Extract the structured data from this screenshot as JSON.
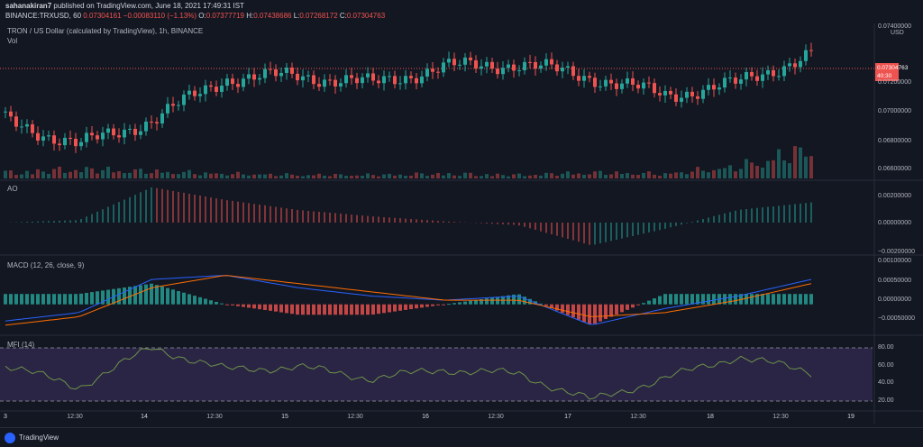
{
  "header": {
    "line1_author": "sahanakiran7",
    "line1_rest": "published on TradingView.com, June 18, 2021 17:49:31 IST",
    "line2_symbol": "BINANCE:TRXUSD, 60",
    "line2_last": "0.07304161",
    "line2_change": "−0.00083110 (−1.13%)",
    "line2_o": "O:",
    "line2_o_val": "0.07377719",
    "line2_h": "H:",
    "line2_h_val": "0.07438686",
    "line2_l": "L:",
    "line2_l_val": "0.07268172",
    "line2_c": "C:",
    "line2_c_val": "0.07304763"
  },
  "main": {
    "title": "TRON / US Dollar (calculated by TradingView), 1h, BINANCE",
    "vol_label": "Vol",
    "currency": "USD",
    "price_tag_value": "0.07304763",
    "price_tag_timer": "40:30",
    "y_ticks": [
      "0.07400000",
      "0.07200000",
      "0.07000000",
      "0.06800000",
      "0.06600000"
    ]
  },
  "ao": {
    "title": "AO",
    "y_ticks": [
      "0.00200000",
      "0.00000000",
      "−0.00200000"
    ]
  },
  "macd": {
    "title": "MACD (12, 26, close, 9)",
    "y_ticks": [
      "0.00100000",
      "0.00050000",
      "0.00000000",
      "−0.00050000"
    ]
  },
  "mfi": {
    "title": "MFI (14)",
    "y_ticks": [
      "80.00",
      "60.00",
      "40.00",
      "20.00"
    ]
  },
  "x_ticks": [
    "3",
    "12:30",
    "14",
    "12:30",
    "15",
    "12:30",
    "16",
    "12:30",
    "17",
    "12:30",
    "18",
    "12:30",
    "19"
  ],
  "footer": {
    "brand": "TradingView"
  },
  "colors": {
    "up": "#26a69a",
    "down": "#ef5350",
    "background": "#131722",
    "mfi_fill": "#7e57c2",
    "macd_line": "#2962ff",
    "signal_line": "#ff6d00"
  },
  "chart_data": [
    {
      "type": "line",
      "title": "TRON / US Dollar (calculated by TradingView), 1h, BINANCE",
      "subtype": "candlestick",
      "ylim": [
        0.0655,
        0.0745
      ],
      "x": [
        "3",
        "12:30",
        "14",
        "12:30",
        "15",
        "12:30",
        "16",
        "12:30",
        "17",
        "12:30",
        "18",
        "12:30"
      ],
      "series": [
        {
          "name": "Close",
          "values": [
            0.069,
            0.0675,
            0.069,
            0.0715,
            0.0717,
            0.0712,
            0.0722,
            0.0724,
            0.0716,
            0.0705,
            0.0712,
            0.073
          ]
        },
        {
          "name": "Vol",
          "values": [
            0.5,
            0.8,
            0.6,
            0.4,
            0.3,
            0.3,
            0.4,
            0.3,
            0.5,
            0.4,
            1.0,
            2.5
          ]
        }
      ]
    },
    {
      "type": "bar",
      "title": "AO",
      "ylim": [
        -0.0025,
        0.003
      ],
      "x": [
        "3",
        "12:30",
        "14",
        "12:30",
        "15",
        "12:30",
        "16",
        "12:30",
        "17",
        "12:30",
        "18",
        "12:30"
      ],
      "values": [
        0.0,
        0.0002,
        0.0028,
        0.0018,
        0.001,
        0.0005,
        0.0001,
        -0.0002,
        -0.0018,
        -0.0005,
        0.001,
        0.0016
      ]
    },
    {
      "type": "line",
      "title": "MACD (12, 26, close, 9)",
      "ylim": [
        -0.0007,
        0.0011
      ],
      "x": [
        "3",
        "12:30",
        "14",
        "12:30",
        "15",
        "12:30",
        "16",
        "12:30",
        "17",
        "12:30",
        "18",
        "12:30"
      ],
      "series": [
        {
          "name": "MACD",
          "values": [
            -0.0004,
            -0.0002,
            0.0006,
            0.0007,
            0.0004,
            0.0002,
            0.0001,
            0.0002,
            -0.0005,
            -0.0001,
            0.0002,
            0.0006
          ]
        },
        {
          "name": "Signal",
          "values": [
            -0.0005,
            -0.0003,
            0.0004,
            0.0007,
            0.0005,
            0.0003,
            0.0001,
            0.0001,
            -0.0003,
            -0.0002,
            0.0001,
            0.0005
          ]
        }
      ]
    },
    {
      "type": "line",
      "title": "MFI (14)",
      "ylim": [
        10,
        90
      ],
      "x": [
        "3",
        "12:30",
        "14",
        "12:30",
        "15",
        "12:30",
        "16",
        "12:30",
        "17",
        "12:30",
        "18",
        "12:30"
      ],
      "values": [
        60,
        35,
        80,
        55,
        58,
        45,
        55,
        50,
        20,
        45,
        70,
        52
      ]
    }
  ]
}
